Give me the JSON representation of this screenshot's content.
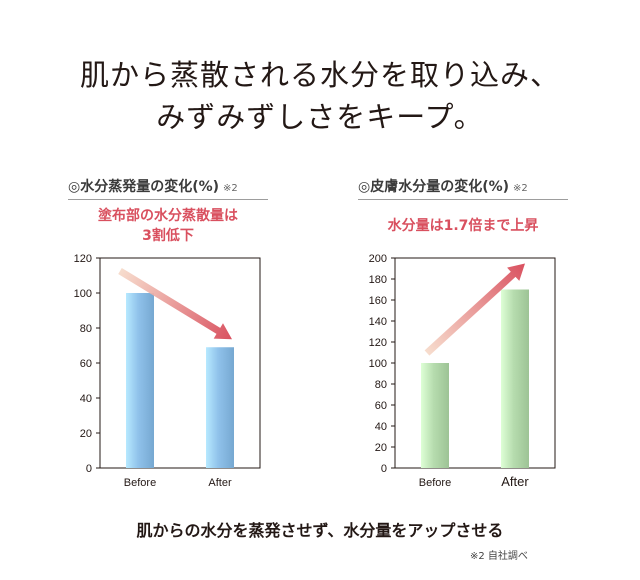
{
  "headline": {
    "line1": "肌から蒸散される水分を取り込み、",
    "line2": "みずみずしさをキープ。"
  },
  "chart_data": [
    {
      "type": "bar",
      "title": "◎水分蒸発量の変化(%)",
      "note": "※2",
      "annotation": [
        "塗布部の水分蒸散量は",
        "3割低下"
      ],
      "categories": [
        "Before",
        "After"
      ],
      "values": [
        100,
        69
      ],
      "ylim": [
        0,
        120
      ],
      "yticks": [
        0,
        20,
        40,
        60,
        80,
        100,
        120
      ],
      "bar_color": "#8fc1ea",
      "arrow_direction": "down",
      "grid": false
    },
    {
      "type": "bar",
      "title": "◎皮膚水分量の変化(%)",
      "note": "※2",
      "annotation": [
        "水分量は1.7倍まで上昇"
      ],
      "categories": [
        "Before",
        "After"
      ],
      "values": [
        100,
        170
      ],
      "ylim": [
        0,
        200
      ],
      "yticks": [
        0,
        20,
        40,
        60,
        80,
        100,
        120,
        140,
        160,
        180,
        200
      ],
      "bar_color": "#b6dcae",
      "arrow_direction": "up",
      "grid": false
    }
  ],
  "footer": "肌からの水分を蒸発させず、水分量をアップさせる",
  "source_note": "※2 自社調べ",
  "colors": {
    "accent": "#d9505f",
    "text": "#231815"
  }
}
